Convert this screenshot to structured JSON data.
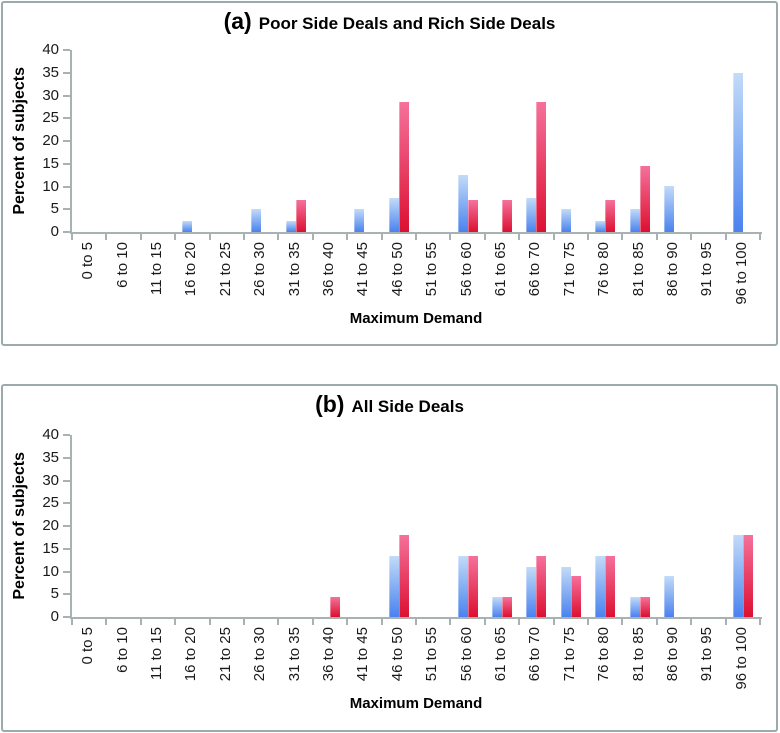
{
  "chart_data": [
    {
      "type": "bar",
      "panel_label": "(a)",
      "title": "Poor Side Deals and Rich Side Deals",
      "xlabel": "Maximum Demand",
      "ylabel": "Percent of subjects",
      "ylim": [
        0,
        40
      ],
      "ytick_step": 5,
      "grid": false,
      "legend": "none",
      "categories": [
        "0 to 5",
        "6 to 10",
        "11 to 15",
        "16 to 20",
        "21 to 25",
        "26 to 30",
        "31 to 35",
        "36 to 40",
        "41 to 45",
        "46 to 50",
        "51 to 55",
        "56 to 60",
        "61 to 65",
        "66 to 70",
        "71 to 75",
        "76 to 80",
        "81 to 85",
        "86 to 90",
        "91 to 95",
        "96 to 100"
      ],
      "series": [
        {
          "name": "blue",
          "color_top": "#c2dbf8",
          "color_bottom": "#4a82ee",
          "values": [
            0,
            0,
            0,
            2.5,
            0,
            5,
            2.5,
            0,
            5,
            7.5,
            0,
            12.5,
            0,
            7.5,
            5,
            2.5,
            5,
            10,
            0,
            35
          ]
        },
        {
          "name": "red",
          "color_top": "#f5719b",
          "color_bottom": "#dc1031",
          "values": [
            0,
            0,
            0,
            0,
            0,
            0,
            7,
            0,
            0,
            28.5,
            0,
            7,
            7,
            28.5,
            0,
            7,
            14.5,
            0,
            0,
            0
          ]
        }
      ]
    },
    {
      "type": "bar",
      "panel_label": "(b)",
      "title": "All Side Deals",
      "xlabel": "Maximum Demand",
      "ylabel": "Percent of subjects",
      "ylim": [
        0,
        40
      ],
      "ytick_step": 5,
      "grid": false,
      "legend": "none",
      "categories": [
        "0 to 5",
        "6 to 10",
        "11 to 15",
        "16 to 20",
        "21 to 25",
        "26 to 30",
        "31 to 35",
        "36 to 40",
        "41 to 45",
        "46 to 50",
        "51 to 55",
        "56 to 60",
        "61 to 65",
        "66 to 70",
        "71 to 75",
        "76 to 80",
        "81 to 85",
        "86 to 90",
        "91 to 95",
        "96 to 100"
      ],
      "series": [
        {
          "name": "blue",
          "color_top": "#c2dbf8",
          "color_bottom": "#4a82ee",
          "values": [
            0,
            0,
            0,
            0,
            0,
            0,
            0,
            0,
            0,
            13.5,
            0,
            13.5,
            4.5,
            11,
            11,
            13.5,
            4.5,
            9,
            0,
            18
          ]
        },
        {
          "name": "red",
          "color_top": "#f5719b",
          "color_bottom": "#dc1031",
          "values": [
            0,
            0,
            0,
            0,
            0,
            0,
            0,
            4.5,
            0,
            18,
            0,
            13.5,
            4.5,
            13.5,
            9,
            13.5,
            4.5,
            0,
            0,
            18
          ]
        }
      ]
    }
  ]
}
